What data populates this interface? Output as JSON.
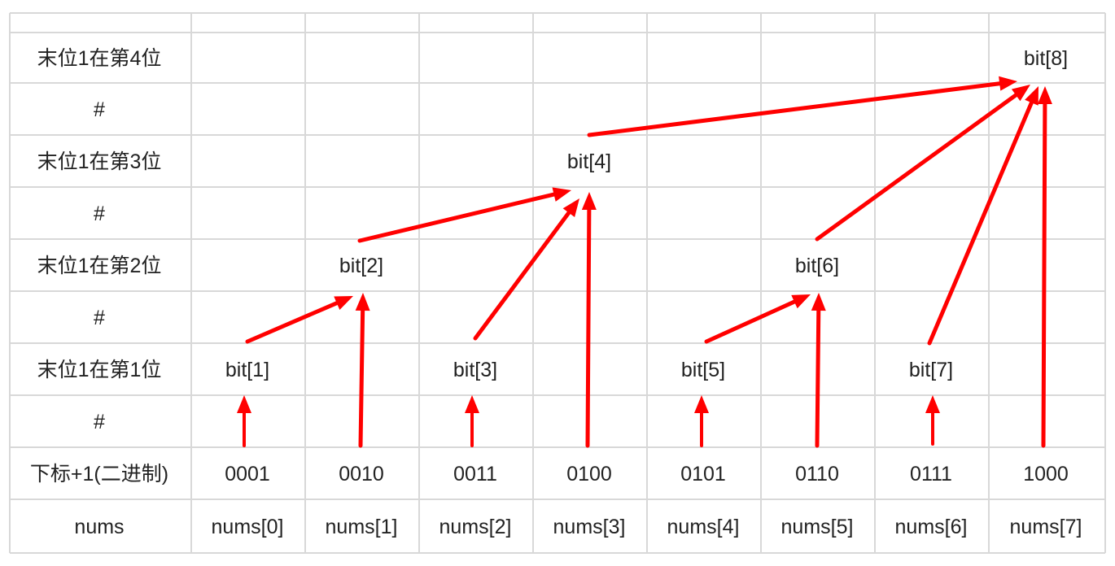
{
  "row_labels": {
    "level4": "末位1在第4位",
    "sep4": "#",
    "level3": "末位1在第3位",
    "sep3": "#",
    "level2": "末位1在第2位",
    "sep2": "#",
    "level1": "末位1在第1位",
    "sep1": "#",
    "binary": "下标+1(二进制)",
    "nums": "nums"
  },
  "binary_values": [
    "0001",
    "0010",
    "0011",
    "0100",
    "0101",
    "0110",
    "0111",
    "1000"
  ],
  "nums_values": [
    "nums[0]",
    "nums[1]",
    "nums[2]",
    "nums[3]",
    "nums[4]",
    "nums[5]",
    "nums[6]",
    "nums[7]"
  ],
  "bits": {
    "bit1": "bit[1]",
    "bit2": "bit[2]",
    "bit3": "bit[3]",
    "bit4": "bit[4]",
    "bit5": "bit[5]",
    "bit6": "bit[6]",
    "bit7": "bit[7]",
    "bit8": "bit[8]"
  },
  "colors": {
    "arrow": "#ff0000",
    "grid": "#d8d8d8",
    "text": "#222222"
  }
}
